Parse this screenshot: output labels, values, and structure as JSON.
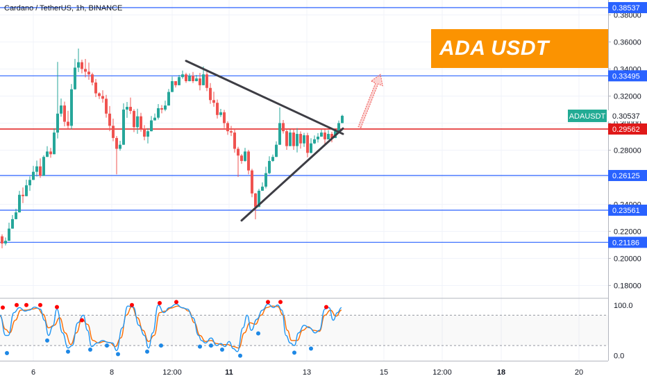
{
  "header": {
    "symbol_info": "Cardano / TetherUS, 1h, BINANCE"
  },
  "banner": {
    "text": "ADA USDT",
    "color": "#fb9301"
  },
  "colors": {
    "bull": "#26a69a",
    "bear": "#ef5350",
    "hline_blue": "#2962ff",
    "hline_red": "#e01919",
    "trendline": "#3d3d44",
    "stoch_k": "#2196f3",
    "stoch_d": "#ff6d00",
    "stoch_marker_high": "#ff0000",
    "stoch_marker_low": "#1e88e5",
    "price_tag_symbol_bg": "#22ab94"
  },
  "chart_data": {
    "type": "candlestick",
    "y_axis": {
      "ylim": [
        0.171,
        0.391
      ],
      "ticks": [
        "0.18000",
        "0.20000",
        "0.22000",
        "0.24000",
        "0.26000",
        "0.28000",
        "0.30000",
        "0.32000",
        "0.34000",
        "0.36000",
        "0.38000"
      ]
    },
    "x_axis": {
      "ticks": [
        "6",
        "8",
        "12:00",
        "11",
        "13",
        "15",
        "12:00",
        "18",
        "20"
      ],
      "bold_ticks": [
        "11",
        "18"
      ]
    },
    "horizontal_levels": [
      {
        "value": 0.38537,
        "label": "0.38537",
        "color": "blue"
      },
      {
        "value": 0.33495,
        "label": "0.33495",
        "color": "blue"
      },
      {
        "value": 0.29562,
        "label": "0.29562",
        "color": "red"
      },
      {
        "value": 0.26125,
        "label": "0.26125",
        "color": "blue"
      },
      {
        "value": 0.23561,
        "label": "0.23561",
        "color": "blue"
      },
      {
        "value": 0.21186,
        "label": "0.21186",
        "color": "blue"
      }
    ],
    "last_price": {
      "symbol": "ADAUSDT",
      "value": "0.30537"
    },
    "triangle": {
      "upper": {
        "from": {
          "bar": 268,
          "price": 0.346
        },
        "to": {
          "bar": 494,
          "price": 0.292
        }
      },
      "lower": {
        "from": {
          "bar": 348,
          "price": 0.228
        },
        "to": {
          "bar": 494,
          "price": 0.296
        }
      }
    },
    "projection_arrow": {
      "from": {
        "bar": 518,
        "price": 0.297
      },
      "to": {
        "bar": 548,
        "price": 0.336
      }
    },
    "candles": [
      [
        0,
        0.2163,
        0.2178,
        0.2075,
        0.211
      ],
      [
        5,
        0.211,
        0.2154,
        0.2095,
        0.213
      ],
      [
        10,
        0.213,
        0.2264,
        0.2129,
        0.222
      ],
      [
        15,
        0.222,
        0.232,
        0.2219,
        0.229
      ],
      [
        20,
        0.229,
        0.2367,
        0.2289,
        0.234
      ],
      [
        25,
        0.234,
        0.2499,
        0.2339,
        0.247
      ],
      [
        30,
        0.247,
        0.2524,
        0.2409,
        0.246
      ],
      [
        35,
        0.246,
        0.2582,
        0.2459,
        0.254
      ],
      [
        40,
        0.254,
        0.2606,
        0.2499,
        0.258
      ],
      [
        45,
        0.258,
        0.2684,
        0.2579,
        0.264
      ],
      [
        50,
        0.264,
        0.2723,
        0.2605,
        0.268
      ],
      [
        55,
        0.268,
        0.2739,
        0.2595,
        0.261
      ],
      [
        60,
        0.261,
        0.2762,
        0.2609,
        0.275
      ],
      [
        65,
        0.275,
        0.2829,
        0.2749,
        0.279
      ],
      [
        70,
        0.279,
        0.2817,
        0.2744,
        0.277
      ],
      [
        75,
        0.277,
        0.2962,
        0.2769,
        0.293
      ],
      [
        80,
        0.293,
        0.3452,
        0.2886,
        0.307
      ],
      [
        85,
        0.307,
        0.3182,
        0.3047,
        0.313
      ],
      [
        90,
        0.313,
        0.3159,
        0.2976,
        0.301
      ],
      [
        95,
        0.301,
        0.3091,
        0.2956,
        0.298
      ],
      [
        100,
        0.298,
        0.3289,
        0.2954,
        0.325
      ],
      [
        105,
        0.325,
        0.3475,
        0.3247,
        0.341
      ],
      [
        110,
        0.341,
        0.3551,
        0.3377,
        0.345
      ],
      [
        115,
        0.345,
        0.3469,
        0.3368,
        0.34
      ],
      [
        120,
        0.34,
        0.3474,
        0.3338,
        0.338
      ],
      [
        125,
        0.338,
        0.3447,
        0.332,
        0.336
      ],
      [
        130,
        0.336,
        0.3373,
        0.3279,
        0.33
      ],
      [
        135,
        0.33,
        0.3326,
        0.3192,
        0.322
      ],
      [
        140,
        0.322,
        0.3228,
        0.3178,
        0.32
      ],
      [
        145,
        0.32,
        0.3243,
        0.3151,
        0.318
      ],
      [
        150,
        0.318,
        0.3209,
        0.304,
        0.307
      ],
      [
        155,
        0.307,
        0.3126,
        0.294,
        0.298
      ],
      [
        160,
        0.298,
        0.3033,
        0.2866,
        0.289
      ],
      [
        165,
        0.289,
        0.2905,
        0.2621,
        0.281
      ],
      [
        170,
        0.281,
        0.2869,
        0.2796,
        0.284
      ],
      [
        175,
        0.284,
        0.3146,
        0.2839,
        0.31
      ],
      [
        180,
        0.31,
        0.3156,
        0.3039,
        0.312
      ],
      [
        185,
        0.312,
        0.3189,
        0.3067,
        0.309
      ],
      [
        190,
        0.309,
        0.3103,
        0.2933,
        0.297
      ],
      [
        195,
        0.297,
        0.3106,
        0.2921,
        0.305
      ],
      [
        200,
        0.305,
        0.3076,
        0.2936,
        0.296
      ],
      [
        205,
        0.296,
        0.2985,
        0.2873,
        0.29
      ],
      [
        210,
        0.29,
        0.2963,
        0.285,
        0.294
      ],
      [
        215,
        0.294,
        0.3052,
        0.2938,
        0.302
      ],
      [
        220,
        0.302,
        0.3071,
        0.3019,
        0.304
      ],
      [
        225,
        0.304,
        0.3141,
        0.3026,
        0.311
      ],
      [
        230,
        0.311,
        0.3133,
        0.3072,
        0.31
      ],
      [
        235,
        0.31,
        0.3166,
        0.3088,
        0.313
      ],
      [
        240,
        0.313,
        0.3252,
        0.3129,
        0.323
      ],
      [
        245,
        0.323,
        0.3344,
        0.3229,
        0.331
      ],
      [
        250,
        0.331,
        0.3302,
        0.3263,
        0.328
      ],
      [
        255,
        0.328,
        0.3356,
        0.3279,
        0.334
      ],
      [
        260,
        0.334,
        0.3388,
        0.3328,
        0.336
      ],
      [
        265,
        0.336,
        0.3372,
        0.3297,
        0.331
      ],
      [
        270,
        0.331,
        0.3367,
        0.3309,
        0.335
      ],
      [
        275,
        0.335,
        0.3378,
        0.3296,
        0.331
      ],
      [
        280,
        0.331,
        0.3356,
        0.3309,
        0.333
      ],
      [
        285,
        0.333,
        0.3371,
        0.3242,
        0.328
      ],
      [
        290,
        0.328,
        0.3419,
        0.3279,
        0.336
      ],
      [
        295,
        0.336,
        0.3379,
        0.3236,
        0.326
      ],
      [
        300,
        0.326,
        0.3296,
        0.3143,
        0.317
      ],
      [
        305,
        0.317,
        0.3232,
        0.3121,
        0.315
      ],
      [
        310,
        0.315,
        0.3174,
        0.3034,
        0.306
      ],
      [
        315,
        0.306,
        0.3105,
        0.3045,
        0.308
      ],
      [
        320,
        0.308,
        0.3098,
        0.2963,
        0.3
      ],
      [
        325,
        0.3,
        0.3013,
        0.2913,
        0.294
      ],
      [
        330,
        0.294,
        0.2979,
        0.2904,
        0.293
      ],
      [
        335,
        0.293,
        0.2957,
        0.2781,
        0.281
      ],
      [
        340,
        0.281,
        0.2825,
        0.2602,
        0.276
      ],
      [
        345,
        0.276,
        0.2771,
        0.2699,
        0.272
      ],
      [
        350,
        0.272,
        0.2817,
        0.2714,
        0.279
      ],
      [
        355,
        0.279,
        0.2802,
        0.2621,
        0.265
      ],
      [
        360,
        0.265,
        0.2662,
        0.2452,
        0.248
      ],
      [
        365,
        0.248,
        0.2484,
        0.2289,
        0.238
      ],
      [
        370,
        0.238,
        0.2514,
        0.2379,
        0.25
      ],
      [
        375,
        0.25,
        0.2562,
        0.2499,
        0.253
      ],
      [
        380,
        0.253,
        0.2677,
        0.2517,
        0.263
      ],
      [
        385,
        0.263,
        0.2755,
        0.2622,
        0.272
      ],
      [
        390,
        0.272,
        0.2768,
        0.2714,
        0.275
      ],
      [
        395,
        0.275,
        0.2865,
        0.2749,
        0.284
      ],
      [
        400,
        0.284,
        0.3116,
        0.2839,
        0.3
      ],
      [
        405,
        0.3,
        0.3023,
        0.2923,
        0.294
      ],
      [
        410,
        0.294,
        0.296,
        0.2802,
        0.283
      ],
      [
        415,
        0.283,
        0.2954,
        0.2829,
        0.293
      ],
      [
        420,
        0.293,
        0.2952,
        0.2802,
        0.283
      ],
      [
        425,
        0.283,
        0.2963,
        0.2783,
        0.292
      ],
      [
        430,
        0.292,
        0.2939,
        0.2811,
        0.285
      ],
      [
        435,
        0.285,
        0.2928,
        0.2824,
        0.291
      ],
      [
        440,
        0.291,
        0.2928,
        0.2747,
        0.278
      ],
      [
        445,
        0.278,
        0.2888,
        0.2776,
        0.285
      ],
      [
        450,
        0.285,
        0.2909,
        0.2845,
        0.288
      ],
      [
        455,
        0.288,
        0.2926,
        0.2856,
        0.29
      ],
      [
        460,
        0.29,
        0.2951,
        0.2899,
        0.293
      ],
      [
        465,
        0.293,
        0.2954,
        0.2845,
        0.288
      ],
      [
        470,
        0.288,
        0.2948,
        0.2879,
        0.292
      ],
      [
        475,
        0.292,
        0.2935,
        0.2858,
        0.289
      ],
      [
        480,
        0.289,
        0.2953,
        0.2889,
        0.294
      ],
      [
        485,
        0.294,
        0.3019,
        0.2939,
        0.3
      ],
      [
        490,
        0.3,
        0.3062,
        0.2999,
        0.3054
      ]
    ],
    "stochastic": {
      "ylim": [
        -10,
        112
      ],
      "ticks": [
        "100.0",
        "0.0"
      ],
      "bands": [
        80,
        20
      ],
      "k": [
        [
          0,
          80
        ],
        [
          8,
          40
        ],
        [
          12,
          40
        ],
        [
          20,
          85
        ],
        [
          28,
          95
        ],
        [
          36,
          88
        ],
        [
          42,
          90
        ],
        [
          50,
          96
        ],
        [
          58,
          92
        ],
        [
          64,
          70
        ],
        [
          70,
          40
        ],
        [
          76,
          58
        ],
        [
          82,
          92
        ],
        [
          90,
          45
        ],
        [
          98,
          15
        ],
        [
          104,
          20
        ],
        [
          112,
          65
        ],
        [
          120,
          80
        ],
        [
          126,
          50
        ],
        [
          132,
          18
        ],
        [
          140,
          25
        ],
        [
          148,
          30
        ],
        [
          156,
          26
        ],
        [
          162,
          25
        ],
        [
          168,
          10
        ],
        [
          176,
          55
        ],
        [
          184,
          98
        ],
        [
          192,
          96
        ],
        [
          200,
          60
        ],
        [
          208,
          40
        ],
        [
          214,
          15
        ],
        [
          220,
          45
        ],
        [
          228,
          100
        ],
        [
          236,
          85
        ],
        [
          244,
          95
        ],
        [
          254,
          102
        ],
        [
          262,
          95
        ],
        [
          270,
          92
        ],
        [
          278,
          75
        ],
        [
          286,
          40
        ],
        [
          290,
          30
        ],
        [
          296,
          25
        ],
        [
          304,
          35
        ],
        [
          312,
          20
        ],
        [
          318,
          24
        ],
        [
          324,
          18
        ],
        [
          330,
          28
        ],
        [
          336,
          14
        ],
        [
          342,
          8
        ],
        [
          350,
          55
        ],
        [
          356,
          80
        ],
        [
          362,
          50
        ],
        [
          370,
          72
        ],
        [
          378,
          90
        ],
        [
          386,
          102
        ],
        [
          394,
          95
        ],
        [
          400,
          100
        ],
        [
          406,
          90
        ],
        [
          412,
          40
        ],
        [
          418,
          25
        ],
        [
          424,
          20
        ],
        [
          430,
          45
        ],
        [
          438,
          60
        ],
        [
          446,
          55
        ],
        [
          454,
          45
        ],
        [
          460,
          50
        ],
        [
          468,
          92
        ],
        [
          474,
          95
        ],
        [
          480,
          70
        ],
        [
          486,
          85
        ],
        [
          492,
          95
        ]
      ],
      "d": [
        [
          0,
          78
        ],
        [
          8,
          52
        ],
        [
          14,
          45
        ],
        [
          22,
          70
        ],
        [
          30,
          90
        ],
        [
          38,
          90
        ],
        [
          46,
          92
        ],
        [
          54,
          94
        ],
        [
          62,
          82
        ],
        [
          70,
          55
        ],
        [
          78,
          60
        ],
        [
          86,
          75
        ],
        [
          94,
          45
        ],
        [
          102,
          22
        ],
        [
          110,
          45
        ],
        [
          118,
          72
        ],
        [
          126,
          62
        ],
        [
          134,
          30
        ],
        [
          142,
          25
        ],
        [
          150,
          28
        ],
        [
          158,
          26
        ],
        [
          166,
          18
        ],
        [
          174,
          35
        ],
        [
          182,
          80
        ],
        [
          190,
          97
        ],
        [
          198,
          75
        ],
        [
          206,
          50
        ],
        [
          214,
          28
        ],
        [
          222,
          40
        ],
        [
          230,
          85
        ],
        [
          238,
          88
        ],
        [
          246,
          94
        ],
        [
          256,
          98
        ],
        [
          264,
          94
        ],
        [
          272,
          88
        ],
        [
          280,
          65
        ],
        [
          288,
          40
        ],
        [
          296,
          28
        ],
        [
          304,
          30
        ],
        [
          312,
          24
        ],
        [
          320,
          22
        ],
        [
          328,
          22
        ],
        [
          336,
          18
        ],
        [
          344,
          15
        ],
        [
          352,
          45
        ],
        [
          360,
          65
        ],
        [
          368,
          62
        ],
        [
          376,
          80
        ],
        [
          384,
          95
        ],
        [
          392,
          98
        ],
        [
          400,
          97
        ],
        [
          408,
          80
        ],
        [
          414,
          50
        ],
        [
          420,
          30
        ],
        [
          428,
          30
        ],
        [
          436,
          50
        ],
        [
          444,
          57
        ],
        [
          452,
          50
        ],
        [
          460,
          48
        ],
        [
          468,
          80
        ],
        [
          476,
          90
        ],
        [
          484,
          78
        ],
        [
          492,
          90
        ]
      ],
      "high_markers": [
        [
          4,
          95
        ],
        [
          24,
          100
        ],
        [
          38,
          100
        ],
        [
          58,
          100
        ],
        [
          82,
          96
        ],
        [
          118,
          70
        ],
        [
          190,
          100
        ],
        [
          230,
          104
        ],
        [
          254,
          106
        ],
        [
          386,
          106
        ],
        [
          404,
          106
        ],
        [
          470,
          96
        ]
      ],
      "low_markers": [
        [
          10,
          5
        ],
        [
          68,
          30
        ],
        [
          98,
          8
        ],
        [
          130,
          12
        ],
        [
          154,
          20
        ],
        [
          170,
          3
        ],
        [
          212,
          8
        ],
        [
          232,
          20
        ],
        [
          288,
          18
        ],
        [
          304,
          20
        ],
        [
          320,
          12
        ],
        [
          346,
          0
        ],
        [
          372,
          44
        ],
        [
          424,
          6
        ],
        [
          448,
          14
        ]
      ]
    }
  }
}
